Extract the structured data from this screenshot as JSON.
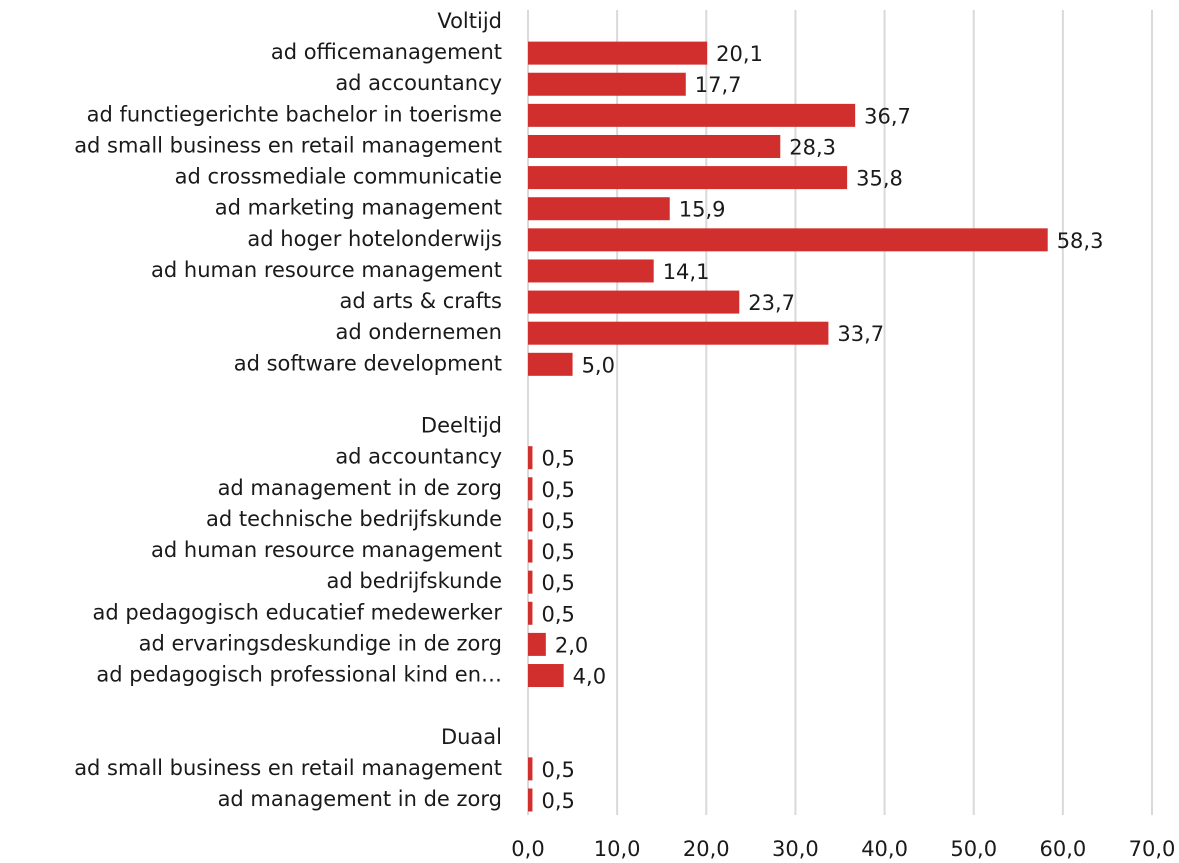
{
  "chart_data": {
    "type": "bar",
    "orientation": "horizontal",
    "color": "#d12f2e",
    "grid": true,
    "categories": [
      "Voltijd",
      "ad officemanagement",
      "ad accountancy",
      "ad functiegerichte bachelor in toerisme",
      "ad small business en retail management",
      "ad crossmediale communicatie",
      "ad marketing management",
      "ad hoger hotelonderwijs",
      "ad human resource management",
      "ad arts & crafts",
      "ad ondernemen",
      "ad software development",
      null,
      "Deeltijd",
      "ad accountancy",
      "ad management in de zorg",
      "ad technische bedrijfskunde",
      "ad human resource management",
      "ad bedrijfskunde",
      "ad pedagogisch educatief medewerker",
      "ad ervaringsdeskundige in de zorg",
      "ad pedagogisch professional kind en…",
      null,
      "Duaal",
      "ad small business en retail management",
      "ad management in de zorg"
    ],
    "values": [
      null,
      20.1,
      17.7,
      36.7,
      28.3,
      35.8,
      15.9,
      58.3,
      14.1,
      23.7,
      33.7,
      5.0,
      null,
      null,
      0.5,
      0.5,
      0.5,
      0.5,
      0.5,
      0.5,
      2.0,
      4.0,
      null,
      null,
      0.5,
      0.5
    ],
    "value_labels": [
      null,
      "20,1",
      "17,7",
      "36,7",
      "28,3",
      "35,8",
      "15,9",
      "58,3",
      "14,1",
      "23,7",
      "33,7",
      "5,0",
      null,
      null,
      "0,5",
      "0,5",
      "0,5",
      "0,5",
      "0,5",
      "0,5",
      "2,0",
      "4,0",
      null,
      null,
      "0,5",
      "0,5"
    ],
    "xlim": [
      0,
      70
    ],
    "xticks": [
      {
        "value": 0,
        "label": "0,0"
      },
      {
        "value": 10,
        "label": "10,0"
      },
      {
        "value": 20,
        "label": "20,0"
      },
      {
        "value": 30,
        "label": "30,0"
      },
      {
        "value": 40,
        "label": "40,0"
      },
      {
        "value": 50,
        "label": "50,0"
      },
      {
        "value": 60,
        "label": "60,0"
      },
      {
        "value": 70,
        "label": "70,0"
      }
    ]
  }
}
